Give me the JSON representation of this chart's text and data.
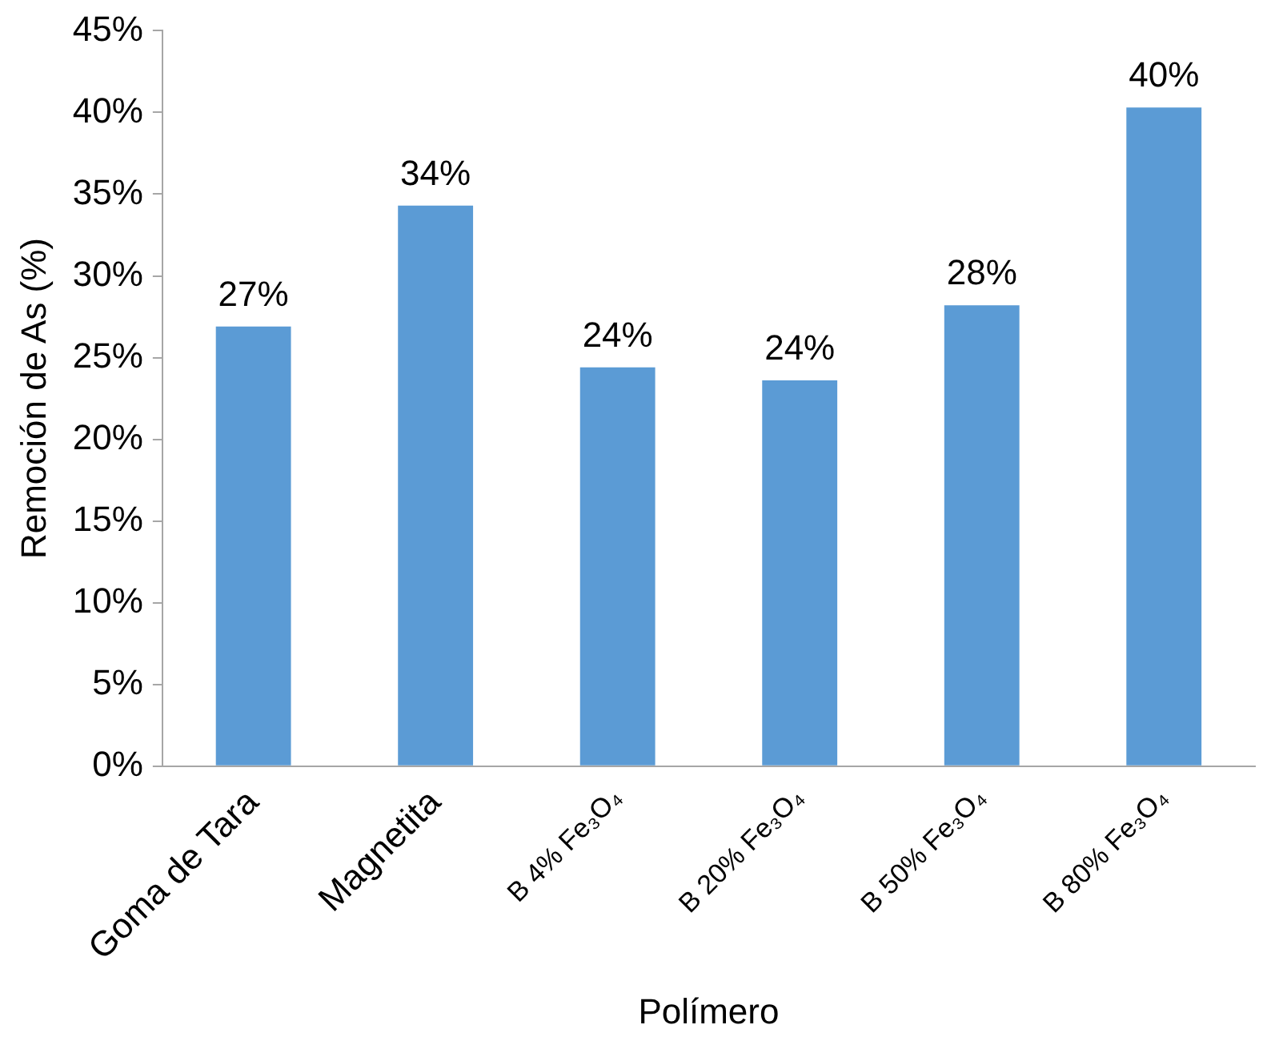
{
  "chart_data": {
    "type": "bar",
    "xlabel": "Polímero",
    "ylabel": "Remoción de As (%)",
    "categories": [
      "Goma de Tara",
      "Magnetita",
      "B 4% Fe₃O₄",
      "B 20% Fe₃O₄",
      "B 50% Fe₃O₄",
      "B 80% Fe₃O₄"
    ],
    "values": [
      26.9,
      34.3,
      24.4,
      23.6,
      28.2,
      40.3
    ],
    "value_labels": [
      "27%",
      "34%",
      "24%",
      "24%",
      "28%",
      "40%"
    ],
    "color": "#5b9bd5",
    "ylim": [
      0,
      45
    ],
    "yticks": [
      {
        "value": 0,
        "label": "0%"
      },
      {
        "value": 5,
        "label": "5%"
      },
      {
        "value": 10,
        "label": "10%"
      },
      {
        "value": 15,
        "label": "15%"
      },
      {
        "value": 20,
        "label": "20%"
      },
      {
        "value": 25,
        "label": "25%"
      },
      {
        "value": 30,
        "label": "30%"
      },
      {
        "value": 35,
        "label": "35%"
      },
      {
        "value": 40,
        "label": "40%"
      },
      {
        "value": 45,
        "label": "45%"
      }
    ],
    "grid": false,
    "legend": false
  }
}
